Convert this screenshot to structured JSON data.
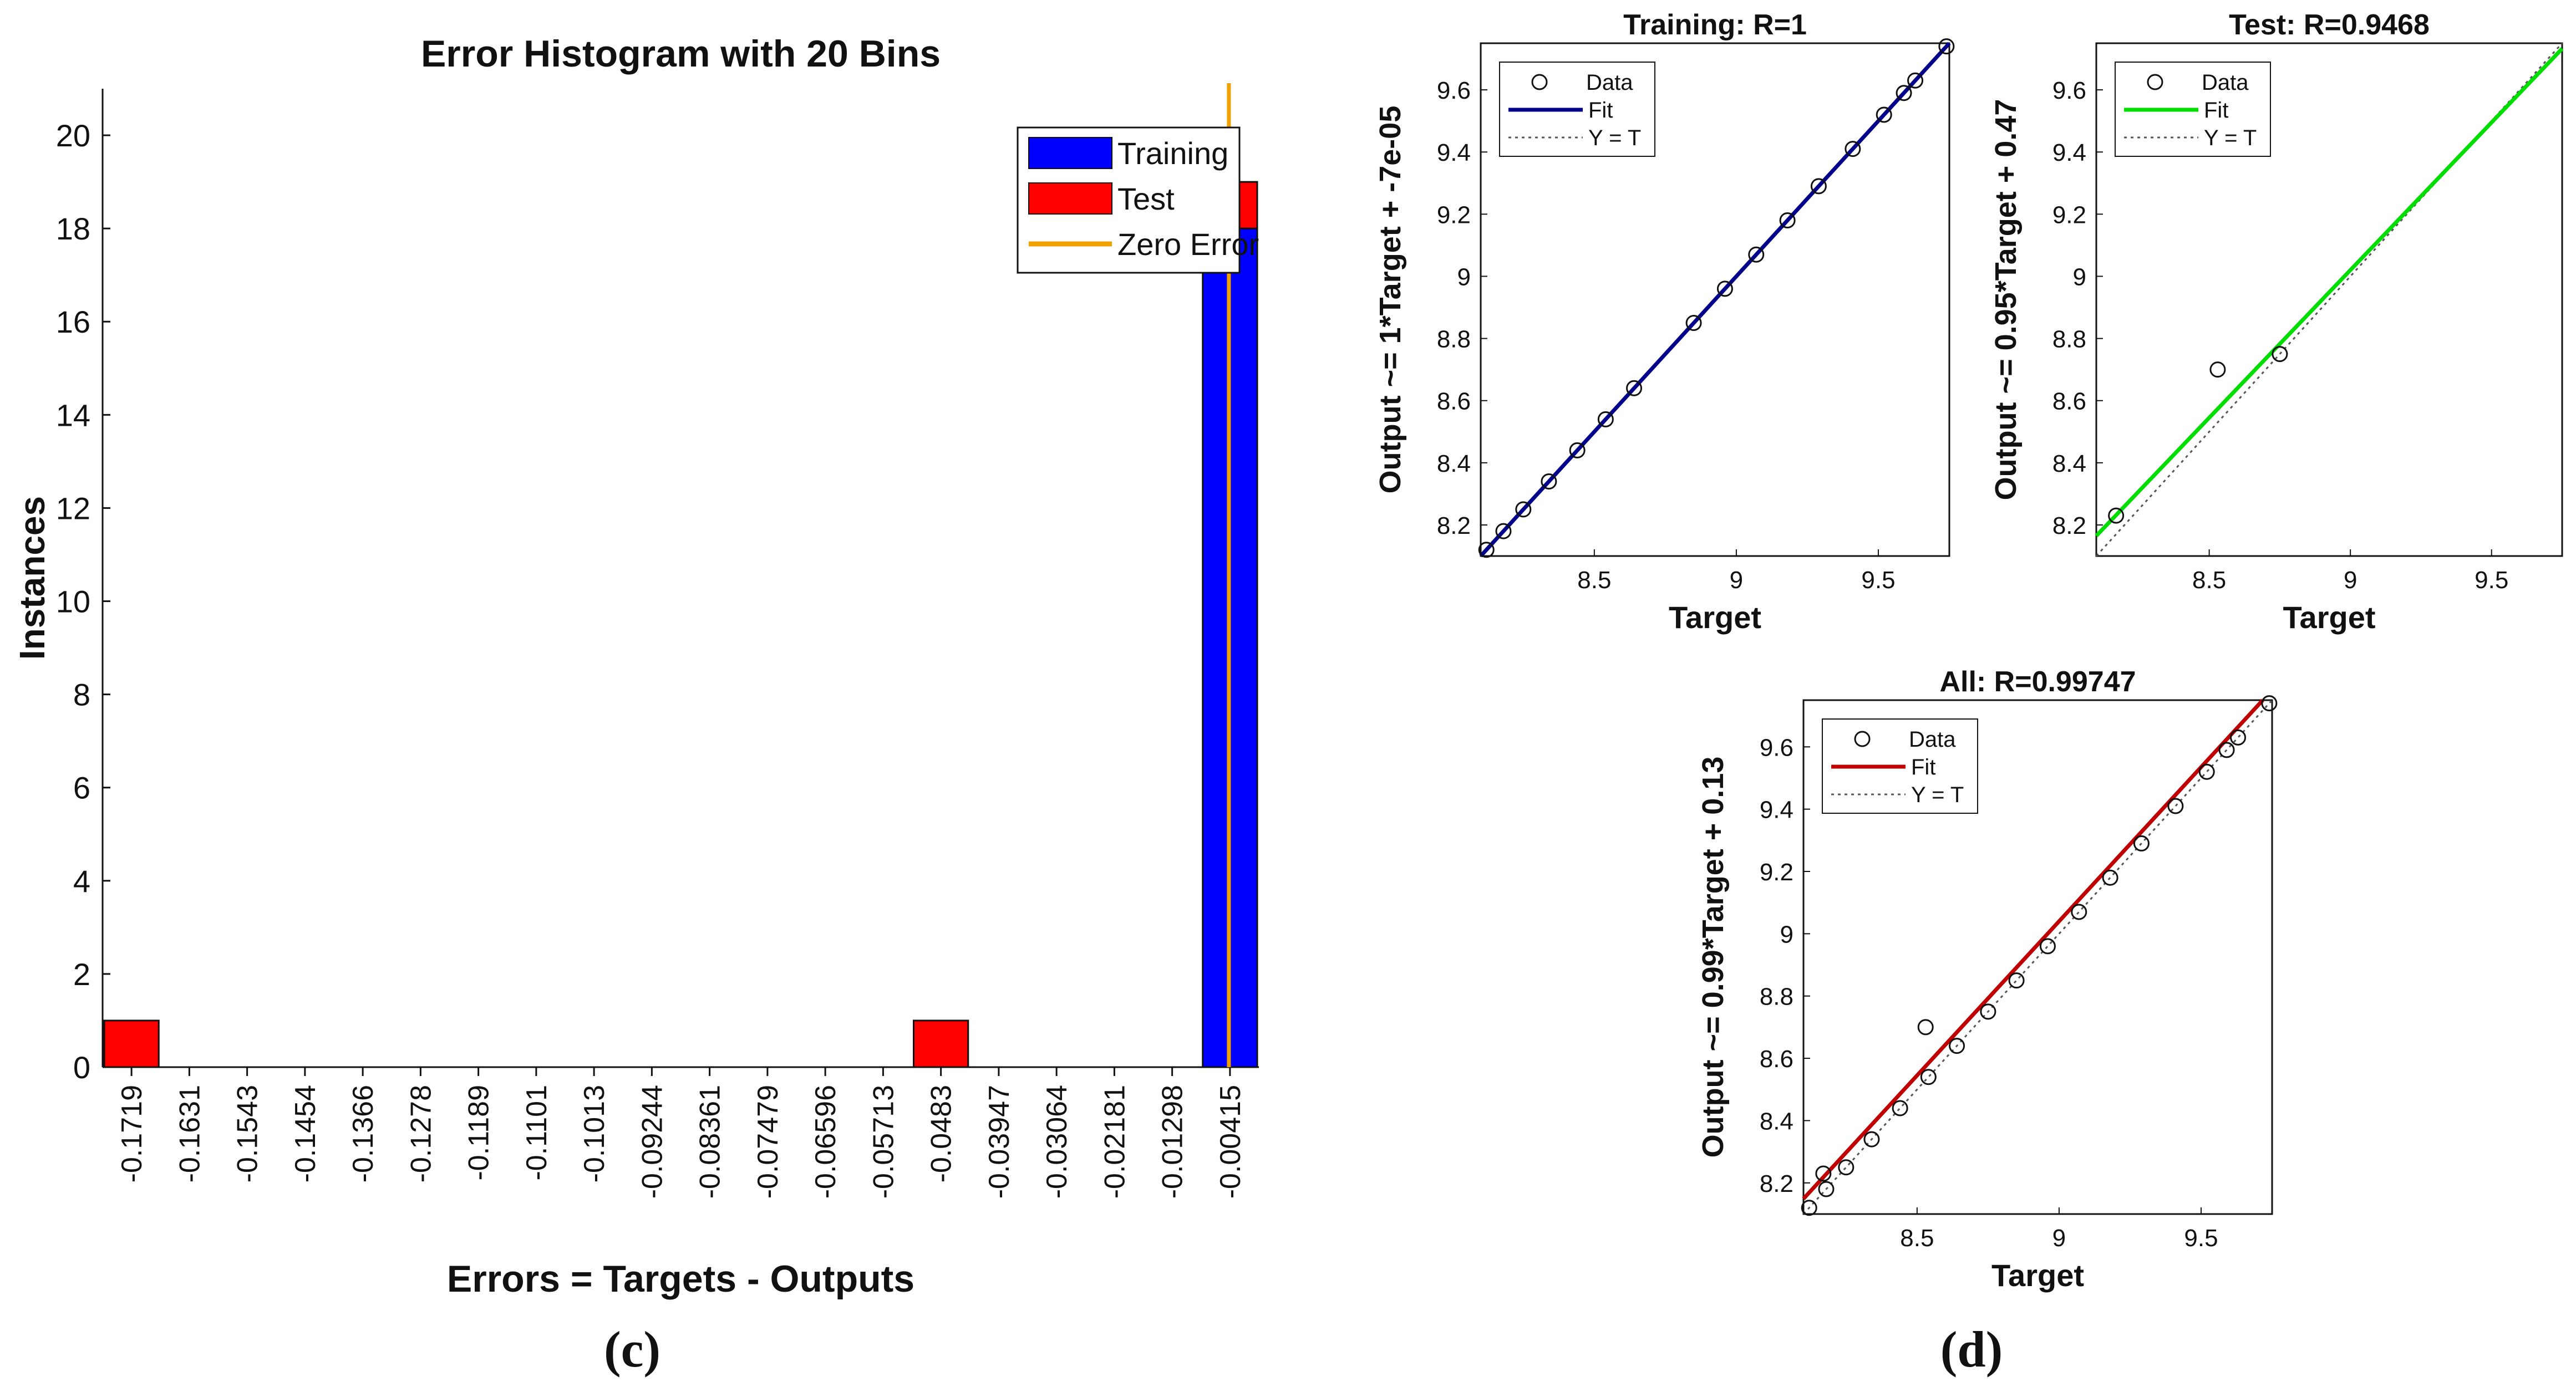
{
  "panel_c_label": "(c)",
  "panel_d_label": "(d)",
  "chart_data": [
    {
      "id": "histogram",
      "type": "bar",
      "title": "Error Histogram with 20 Bins",
      "xlabel": "Errors = Targets - Outputs",
      "ylabel": "Instances",
      "ylim": [
        0,
        21
      ],
      "yticks": [
        0,
        2,
        4,
        6,
        8,
        10,
        12,
        14,
        16,
        18,
        20
      ],
      "categories": [
        "-0.1719",
        "-0.1631",
        "-0.1543",
        "-0.1454",
        "-0.1366",
        "-0.1278",
        "-0.1189",
        "-0.1101",
        "-0.1013",
        "-0.09244",
        "-0.08361",
        "-0.07479",
        "-0.06596",
        "-0.05713",
        "-0.0483",
        "-0.03947",
        "-0.03064",
        "-0.02181",
        "-0.01298",
        "-0.00415"
      ],
      "series": [
        {
          "name": "Training",
          "color": "#0000ff",
          "values": [
            0,
            0,
            0,
            0,
            0,
            0,
            0,
            0,
            0,
            0,
            0,
            0,
            0,
            0,
            0,
            0,
            0,
            0,
            0,
            18
          ]
        },
        {
          "name": "Test",
          "color": "#ff0000",
          "values": [
            1,
            0,
            0,
            0,
            0,
            0,
            0,
            0,
            0,
            0,
            0,
            0,
            0,
            0,
            1,
            0,
            0,
            0,
            0,
            1
          ]
        }
      ],
      "zero_error": {
        "name": "Zero Error",
        "color": "#f0a000",
        "x_bin": 19.5
      },
      "legend": [
        "Training",
        "Test",
        "Zero Error"
      ],
      "legend_placement": "top-right"
    },
    {
      "id": "training",
      "type": "scatter",
      "title": "Training: R=1",
      "xlabel": "Target",
      "ylabel": "Output ~= 1*Target + -7e-05",
      "xlim": [
        8.1,
        9.75
      ],
      "ylim": [
        8.1,
        9.75
      ],
      "xticks": [
        "8.5",
        "9",
        "9.5"
      ],
      "yticks": [
        "8.2",
        "8.4",
        "8.6",
        "8.8",
        "9",
        "9.2",
        "9.4",
        "9.6"
      ],
      "points": [
        [
          8.12,
          8.12
        ],
        [
          8.18,
          8.18
        ],
        [
          8.25,
          8.25
        ],
        [
          8.34,
          8.34
        ],
        [
          8.44,
          8.44
        ],
        [
          8.54,
          8.54
        ],
        [
          8.64,
          8.64
        ],
        [
          8.85,
          8.85
        ],
        [
          8.96,
          8.96
        ],
        [
          9.07,
          9.07
        ],
        [
          9.18,
          9.18
        ],
        [
          9.29,
          9.29
        ],
        [
          9.41,
          9.41
        ],
        [
          9.52,
          9.52
        ],
        [
          9.59,
          9.59
        ],
        [
          9.63,
          9.63
        ],
        [
          9.74,
          9.74
        ]
      ],
      "fit": {
        "slope": 1.0,
        "intercept": -7e-05,
        "color": "#00008b"
      },
      "legend": [
        "Data",
        "Fit",
        "Y = T"
      ],
      "legend_placement": "top-left"
    },
    {
      "id": "test",
      "type": "scatter",
      "title": "Test: R=0.9468",
      "xlabel": "Target",
      "ylabel": "Output ~= 0.95*Target + 0.47",
      "xlim": [
        8.1,
        9.75
      ],
      "ylim": [
        8.1,
        9.75
      ],
      "xticks": [
        "8.5",
        "9",
        "9.5"
      ],
      "yticks": [
        "8.2",
        "8.4",
        "8.6",
        "8.8",
        "9",
        "9.2",
        "9.4",
        "9.6"
      ],
      "points": [
        [
          8.17,
          8.23
        ],
        [
          8.53,
          8.7
        ],
        [
          8.75,
          8.75
        ]
      ],
      "fit": {
        "slope": 0.95,
        "intercept": 0.47,
        "color": "#00dd00"
      },
      "legend": [
        "Data",
        "Fit",
        "Y = T"
      ],
      "legend_placement": "top-left"
    },
    {
      "id": "all",
      "type": "scatter",
      "title": "All: R=0.99747",
      "xlabel": "Target",
      "ylabel": "Output ~= 0.99*Target + 0.13",
      "xlim": [
        8.1,
        9.75
      ],
      "ylim": [
        8.1,
        9.75
      ],
      "xticks": [
        "8.5",
        "9",
        "9.5"
      ],
      "yticks": [
        "8.2",
        "8.4",
        "8.6",
        "8.8",
        "9",
        "9.2",
        "9.4",
        "9.6"
      ],
      "points": [
        [
          8.12,
          8.12
        ],
        [
          8.17,
          8.23
        ],
        [
          8.18,
          8.18
        ],
        [
          8.25,
          8.25
        ],
        [
          8.34,
          8.34
        ],
        [
          8.44,
          8.44
        ],
        [
          8.53,
          8.7
        ],
        [
          8.54,
          8.54
        ],
        [
          8.64,
          8.64
        ],
        [
          8.75,
          8.75
        ],
        [
          8.85,
          8.85
        ],
        [
          8.96,
          8.96
        ],
        [
          9.07,
          9.07
        ],
        [
          9.18,
          9.18
        ],
        [
          9.29,
          9.29
        ],
        [
          9.41,
          9.41
        ],
        [
          9.52,
          9.52
        ],
        [
          9.59,
          9.59
        ],
        [
          9.63,
          9.63
        ],
        [
          9.74,
          9.74
        ]
      ],
      "fit": {
        "slope": 0.99,
        "intercept": 0.13,
        "color": "#c00000"
      },
      "legend": [
        "Data",
        "Fit",
        "Y = T"
      ],
      "legend_placement": "top-left"
    }
  ]
}
